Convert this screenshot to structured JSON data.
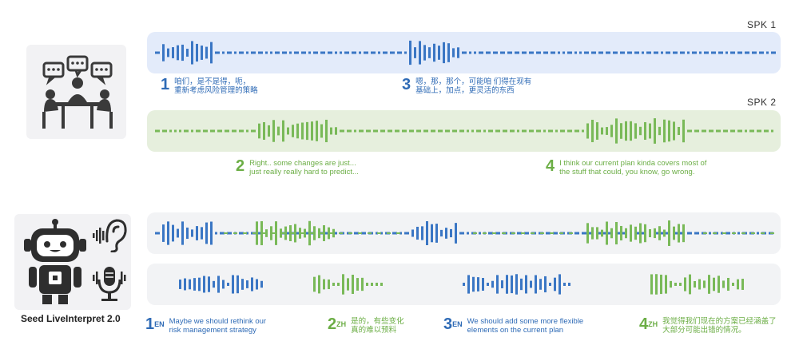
{
  "speakers": {
    "spk1": "SPK 1",
    "spk2": "SPK 2"
  },
  "colors": {
    "blue": "#3a76c4",
    "green": "#79b958",
    "blue_lane": "#e3ebfa",
    "green_lane": "#e6efdd",
    "gray_lane": "#f2f3f5"
  },
  "source_captions": [
    {
      "num": "1",
      "text": "咱们，是不是得，呃，\n重新考虑风险管理的策略",
      "color": "blue"
    },
    {
      "num": "2",
      "text": "Right.. some changes are just...\njust really really hard to predict...",
      "color": "green"
    },
    {
      "num": "3",
      "text": "嗯，那，那个，可能咱 们得在现有\n基础上，加点，更灵活的东西",
      "color": "blue"
    },
    {
      "num": "4",
      "text": "I think our current plan kinda covers most of\nthe stuff that could, you know, go wrong.",
      "color": "green"
    }
  ],
  "model_name": "Seed LiveInterpret 2.0",
  "output_captions": [
    {
      "num": "1",
      "lang": "EN",
      "text": "Maybe we should rethink our\nrisk management strategy",
      "color": "blue"
    },
    {
      "num": "2",
      "lang": "ZH",
      "text": "是的，有些变化\n真的难以预料",
      "color": "green"
    },
    {
      "num": "3",
      "lang": "EN",
      "text": "We should add some more flexible\nelements on the current plan",
      "color": "blue"
    },
    {
      "num": "4",
      "lang": "ZH",
      "text": "我觉得我们现在的方案已经涵盖了\n大部分可能出错的情况。",
      "color": "green"
    }
  ],
  "icons": {
    "meeting": "people-meeting-icon",
    "robot": "robot-icon",
    "ear": "ear-sound-icon",
    "mic": "microphone-icon"
  }
}
